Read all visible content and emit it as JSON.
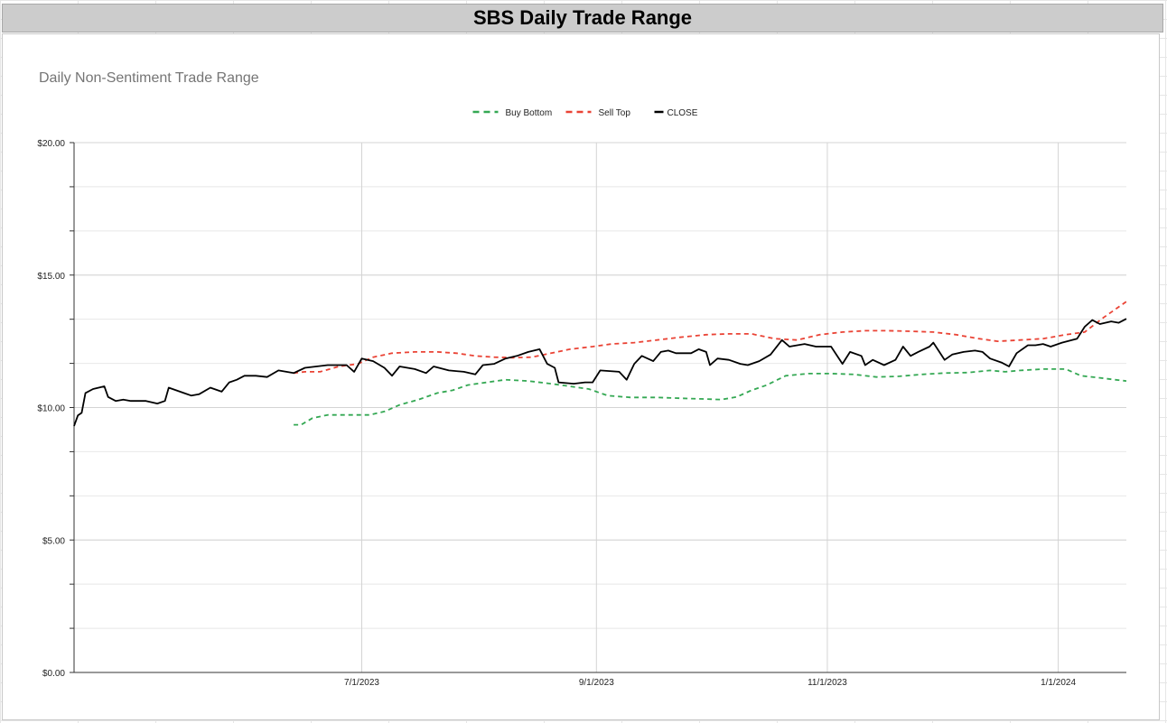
{
  "sheet": {
    "title": "SBS Daily Trade Range"
  },
  "chart_data": {
    "type": "line",
    "title": "Daily Non-Sentiment Trade Range",
    "xlabel": "",
    "ylabel": "",
    "ylim": [
      0,
      20
    ],
    "y_ticks": [
      "$0.00",
      "$5.00",
      "$10.00",
      "$15.00",
      "$20.00"
    ],
    "x_range": [
      "2023-04-16",
      "2024-01-19"
    ],
    "x_ticks": [
      {
        "date": "2023-07-01",
        "label": "7/1/2023"
      },
      {
        "date": "2023-09-01",
        "label": "9/1/2023"
      },
      {
        "date": "2023-11-01",
        "label": "11/1/2023"
      },
      {
        "date": "2024-01-01",
        "label": "1/1/2024"
      }
    ],
    "grid": true,
    "legend_position": "top",
    "series": [
      {
        "name": "Buy Bottom",
        "color": "#34a853",
        "dashed": true,
        "points": [
          [
            "2023-06-13",
            9.35
          ],
          [
            "2023-06-15",
            9.35
          ],
          [
            "2023-06-18",
            9.6
          ],
          [
            "2023-06-22",
            9.72
          ],
          [
            "2023-06-27",
            9.72
          ],
          [
            "2023-07-03",
            9.72
          ],
          [
            "2023-07-07",
            9.85
          ],
          [
            "2023-07-11",
            10.1
          ],
          [
            "2023-07-16",
            10.3
          ],
          [
            "2023-07-21",
            10.55
          ],
          [
            "2023-07-25",
            10.65
          ],
          [
            "2023-07-29",
            10.85
          ],
          [
            "2023-08-03",
            10.95
          ],
          [
            "2023-08-08",
            11.05
          ],
          [
            "2023-08-14",
            11.0
          ],
          [
            "2023-08-20",
            10.9
          ],
          [
            "2023-08-25",
            10.8
          ],
          [
            "2023-08-30",
            10.7
          ],
          [
            "2023-09-04",
            10.45
          ],
          [
            "2023-09-10",
            10.38
          ],
          [
            "2023-09-17",
            10.38
          ],
          [
            "2023-09-23",
            10.35
          ],
          [
            "2023-09-30",
            10.32
          ],
          [
            "2023-10-04",
            10.3
          ],
          [
            "2023-10-08",
            10.4
          ],
          [
            "2023-10-12",
            10.65
          ],
          [
            "2023-10-16",
            10.85
          ],
          [
            "2023-10-21",
            11.2
          ],
          [
            "2023-10-27",
            11.28
          ],
          [
            "2023-11-02",
            11.28
          ],
          [
            "2023-11-08",
            11.25
          ],
          [
            "2023-11-14",
            11.15
          ],
          [
            "2023-11-20",
            11.18
          ],
          [
            "2023-11-26",
            11.25
          ],
          [
            "2023-12-02",
            11.3
          ],
          [
            "2023-12-08",
            11.32
          ],
          [
            "2023-12-14",
            11.4
          ],
          [
            "2023-12-18",
            11.35
          ],
          [
            "2023-12-22",
            11.4
          ],
          [
            "2023-12-28",
            11.45
          ],
          [
            "2024-01-03",
            11.45
          ],
          [
            "2024-01-07",
            11.2
          ],
          [
            "2024-01-12",
            11.12
          ],
          [
            "2024-01-16",
            11.05
          ],
          [
            "2024-01-19",
            11.0
          ]
        ]
      },
      {
        "name": "Sell Top",
        "color": "#ea4335",
        "dashed": true,
        "points": [
          [
            "2023-06-13",
            11.3
          ],
          [
            "2023-06-16",
            11.35
          ],
          [
            "2023-06-20",
            11.35
          ],
          [
            "2023-06-25",
            11.55
          ],
          [
            "2023-06-30",
            11.65
          ],
          [
            "2023-07-04",
            11.9
          ],
          [
            "2023-07-09",
            12.05
          ],
          [
            "2023-07-15",
            12.1
          ],
          [
            "2023-07-21",
            12.1
          ],
          [
            "2023-07-26",
            12.05
          ],
          [
            "2023-07-31",
            11.95
          ],
          [
            "2023-08-05",
            11.9
          ],
          [
            "2023-08-10",
            11.88
          ],
          [
            "2023-08-15",
            11.9
          ],
          [
            "2023-08-20",
            12.05
          ],
          [
            "2023-08-25",
            12.2
          ],
          [
            "2023-08-31",
            12.3
          ],
          [
            "2023-09-05",
            12.4
          ],
          [
            "2023-09-11",
            12.45
          ],
          [
            "2023-09-17",
            12.55
          ],
          [
            "2023-09-23",
            12.65
          ],
          [
            "2023-09-30",
            12.75
          ],
          [
            "2023-10-06",
            12.78
          ],
          [
            "2023-10-12",
            12.78
          ],
          [
            "2023-10-18",
            12.6
          ],
          [
            "2023-10-24",
            12.55
          ],
          [
            "2023-10-30",
            12.75
          ],
          [
            "2023-11-05",
            12.85
          ],
          [
            "2023-11-11",
            12.9
          ],
          [
            "2023-11-17",
            12.9
          ],
          [
            "2023-11-23",
            12.88
          ],
          [
            "2023-11-29",
            12.85
          ],
          [
            "2023-12-05",
            12.75
          ],
          [
            "2023-12-11",
            12.6
          ],
          [
            "2023-12-16",
            12.5
          ],
          [
            "2023-12-22",
            12.55
          ],
          [
            "2023-12-28",
            12.6
          ],
          [
            "2024-01-03",
            12.75
          ],
          [
            "2024-01-08",
            12.85
          ],
          [
            "2024-01-13",
            13.4
          ],
          [
            "2024-01-17",
            13.8
          ],
          [
            "2024-01-19",
            14.0
          ]
        ]
      },
      {
        "name": "CLOSE",
        "color": "#000000",
        "dashed": false,
        "points": [
          [
            "2023-04-16",
            9.3
          ],
          [
            "2023-04-17",
            9.7
          ],
          [
            "2023-04-18",
            9.8
          ],
          [
            "2023-04-19",
            10.55
          ],
          [
            "2023-04-21",
            10.7
          ],
          [
            "2023-04-24",
            10.8
          ],
          [
            "2023-04-25",
            10.4
          ],
          [
            "2023-04-27",
            10.25
          ],
          [
            "2023-04-29",
            10.3
          ],
          [
            "2023-05-01",
            10.25
          ],
          [
            "2023-05-05",
            10.25
          ],
          [
            "2023-05-08",
            10.15
          ],
          [
            "2023-05-10",
            10.25
          ],
          [
            "2023-05-11",
            10.75
          ],
          [
            "2023-05-15",
            10.55
          ],
          [
            "2023-05-17",
            10.45
          ],
          [
            "2023-05-19",
            10.5
          ],
          [
            "2023-05-22",
            10.75
          ],
          [
            "2023-05-25",
            10.6
          ],
          [
            "2023-05-27",
            10.95
          ],
          [
            "2023-05-29",
            11.05
          ],
          [
            "2023-05-31",
            11.2
          ],
          [
            "2023-06-03",
            11.2
          ],
          [
            "2023-06-06",
            11.15
          ],
          [
            "2023-06-09",
            11.4
          ],
          [
            "2023-06-13",
            11.3
          ],
          [
            "2023-06-16",
            11.5
          ],
          [
            "2023-06-19",
            11.55
          ],
          [
            "2023-06-22",
            11.6
          ],
          [
            "2023-06-24",
            11.6
          ],
          [
            "2023-06-27",
            11.6
          ],
          [
            "2023-06-29",
            11.35
          ],
          [
            "2023-07-01",
            11.85
          ],
          [
            "2023-07-04",
            11.75
          ],
          [
            "2023-07-07",
            11.5
          ],
          [
            "2023-07-09",
            11.2
          ],
          [
            "2023-07-11",
            11.55
          ],
          [
            "2023-07-15",
            11.45
          ],
          [
            "2023-07-18",
            11.3
          ],
          [
            "2023-07-20",
            11.55
          ],
          [
            "2023-07-24",
            11.4
          ],
          [
            "2023-07-28",
            11.35
          ],
          [
            "2023-07-31",
            11.25
          ],
          [
            "2023-08-02",
            11.6
          ],
          [
            "2023-08-05",
            11.65
          ],
          [
            "2023-08-08",
            11.85
          ],
          [
            "2023-08-11",
            11.95
          ],
          [
            "2023-08-14",
            12.1
          ],
          [
            "2023-08-17",
            12.2
          ],
          [
            "2023-08-19",
            11.65
          ],
          [
            "2023-08-21",
            11.5
          ],
          [
            "2023-08-22",
            10.95
          ],
          [
            "2023-08-26",
            10.9
          ],
          [
            "2023-08-29",
            10.95
          ],
          [
            "2023-08-31",
            10.95
          ],
          [
            "2023-09-02",
            11.4
          ],
          [
            "2023-09-07",
            11.35
          ],
          [
            "2023-09-09",
            11.05
          ],
          [
            "2023-09-11",
            11.65
          ],
          [
            "2023-09-13",
            11.95
          ],
          [
            "2023-09-16",
            11.75
          ],
          [
            "2023-09-18",
            12.1
          ],
          [
            "2023-09-20",
            12.15
          ],
          [
            "2023-09-22",
            12.05
          ],
          [
            "2023-09-26",
            12.05
          ],
          [
            "2023-09-28",
            12.2
          ],
          [
            "2023-09-30",
            12.1
          ],
          [
            "2023-10-01",
            11.6
          ],
          [
            "2023-10-03",
            11.85
          ],
          [
            "2023-10-06",
            11.8
          ],
          [
            "2023-10-09",
            11.65
          ],
          [
            "2023-10-11",
            11.6
          ],
          [
            "2023-10-14",
            11.75
          ],
          [
            "2023-10-17",
            12.0
          ],
          [
            "2023-10-20",
            12.55
          ],
          [
            "2023-10-22",
            12.3
          ],
          [
            "2023-10-26",
            12.4
          ],
          [
            "2023-10-29",
            12.3
          ],
          [
            "2023-11-02",
            12.3
          ],
          [
            "2023-11-05",
            11.65
          ],
          [
            "2023-11-07",
            12.1
          ],
          [
            "2023-11-10",
            11.95
          ],
          [
            "2023-11-11",
            11.6
          ],
          [
            "2023-11-13",
            11.8
          ],
          [
            "2023-11-16",
            11.6
          ],
          [
            "2023-11-19",
            11.8
          ],
          [
            "2023-11-21",
            12.3
          ],
          [
            "2023-11-23",
            11.95
          ],
          [
            "2023-11-25",
            12.1
          ],
          [
            "2023-11-28",
            12.3
          ],
          [
            "2023-11-29",
            12.45
          ],
          [
            "2023-12-02",
            11.8
          ],
          [
            "2023-12-04",
            12.0
          ],
          [
            "2023-12-07",
            12.1
          ],
          [
            "2023-12-10",
            12.15
          ],
          [
            "2023-12-12",
            12.1
          ],
          [
            "2023-12-14",
            11.85
          ],
          [
            "2023-12-17",
            11.7
          ],
          [
            "2023-12-19",
            11.55
          ],
          [
            "2023-12-21",
            12.05
          ],
          [
            "2023-12-24",
            12.35
          ],
          [
            "2023-12-26",
            12.35
          ],
          [
            "2023-12-28",
            12.4
          ],
          [
            "2023-12-30",
            12.3
          ],
          [
            "2024-01-02",
            12.45
          ],
          [
            "2024-01-06",
            12.6
          ],
          [
            "2024-01-08",
            13.05
          ],
          [
            "2024-01-10",
            13.3
          ],
          [
            "2024-01-12",
            13.15
          ],
          [
            "2024-01-15",
            13.25
          ],
          [
            "2024-01-17",
            13.2
          ],
          [
            "2024-01-19",
            13.35
          ]
        ]
      }
    ]
  }
}
